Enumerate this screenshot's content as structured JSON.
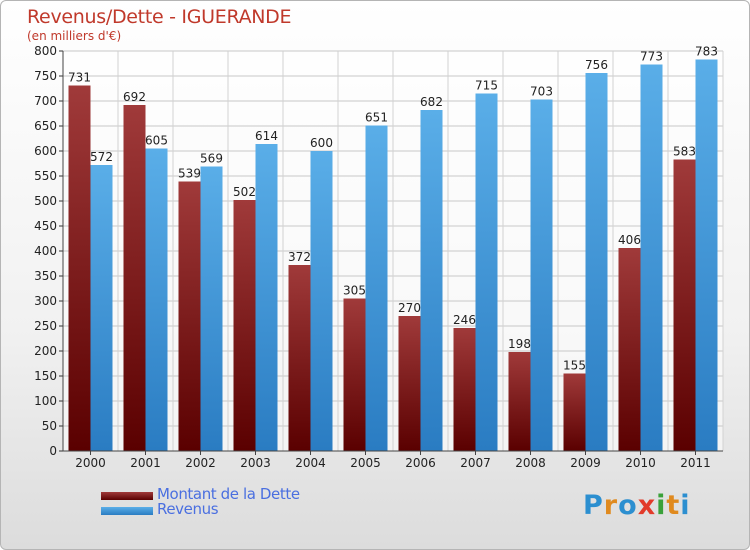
{
  "header": {
    "title": "Revenus/Dette - IGUERANDE",
    "subtitle": "(en milliers d'€)"
  },
  "legend": {
    "items": [
      {
        "label": "Montant de la Dette",
        "color": "#7a1414"
      },
      {
        "label": "Revenus",
        "color": "#4a9de0"
      }
    ]
  },
  "logo": {
    "text": "Proxiti",
    "letters": [
      {
        "ch": "P",
        "color": "#2c8fd0"
      },
      {
        "ch": "r",
        "color": "#e08a1e"
      },
      {
        "ch": "o",
        "color": "#2c8fd0"
      },
      {
        "ch": "x",
        "color": "#e23b2a"
      },
      {
        "ch": "i",
        "color": "#3aa13a"
      },
      {
        "ch": "t",
        "color": "#e08a1e"
      },
      {
        "ch": "i",
        "color": "#2c8fd0"
      }
    ]
  },
  "chart_data": {
    "type": "bar",
    "title": "Revenus/Dette - IGUERANDE",
    "subtitle": "(en milliers d'€)",
    "categories": [
      "2000",
      "2001",
      "2002",
      "2003",
      "2004",
      "2005",
      "2006",
      "2007",
      "2008",
      "2009",
      "2010",
      "2011"
    ],
    "series": [
      {
        "name": "Montant de la Dette",
        "color": "#7a1414",
        "values": [
          731,
          692,
          539,
          502,
          372,
          305,
          270,
          246,
          198,
          155,
          406,
          583
        ]
      },
      {
        "name": "Revenus",
        "color": "#4a9de0",
        "values": [
          572,
          605,
          569,
          614,
          600,
          651,
          682,
          715,
          703,
          756,
          773,
          783
        ]
      }
    ],
    "ylim": [
      0,
      800
    ],
    "yticks": [
      0,
      50,
      100,
      150,
      200,
      250,
      300,
      350,
      400,
      450,
      500,
      550,
      600,
      650,
      700,
      750,
      800
    ],
    "grid": true,
    "legend_position": "bottom-left"
  }
}
